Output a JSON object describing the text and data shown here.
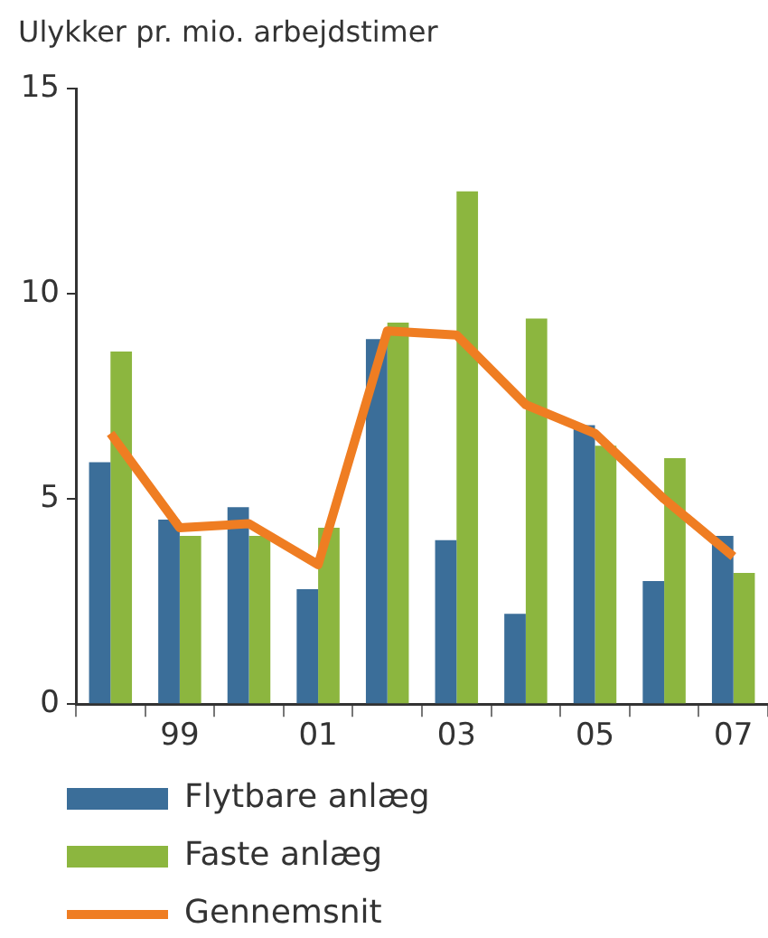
{
  "chart_data": {
    "type": "bar",
    "ylabel": "Ulykker pr. mio. arbejdstimer",
    "categories": [
      null,
      "99",
      null,
      "01",
      null,
      "03",
      null,
      "05",
      null,
      "07"
    ],
    "series": [
      {
        "name": "Flytbare anlæg",
        "color": "#3b6e99",
        "values": [
          5.9,
          4.5,
          4.8,
          2.8,
          8.9,
          4.0,
          2.2,
          6.8,
          3.0,
          4.1
        ]
      },
      {
        "name": "Faste anlæg",
        "color": "#8cb63f",
        "values": [
          8.6,
          4.1,
          4.1,
          4.3,
          9.3,
          12.5,
          9.4,
          6.3,
          6.0,
          3.2
        ]
      },
      {
        "name": "Gennemsnit",
        "type": "line",
        "color": "#ef7d22",
        "values": [
          6.6,
          4.3,
          4.4,
          3.4,
          9.1,
          9.0,
          7.3,
          6.6,
          5.0,
          3.6
        ]
      }
    ],
    "ylim": [
      0,
      15
    ],
    "yticks": [
      0,
      5,
      10,
      15
    ],
    "legend": "bottom left"
  }
}
